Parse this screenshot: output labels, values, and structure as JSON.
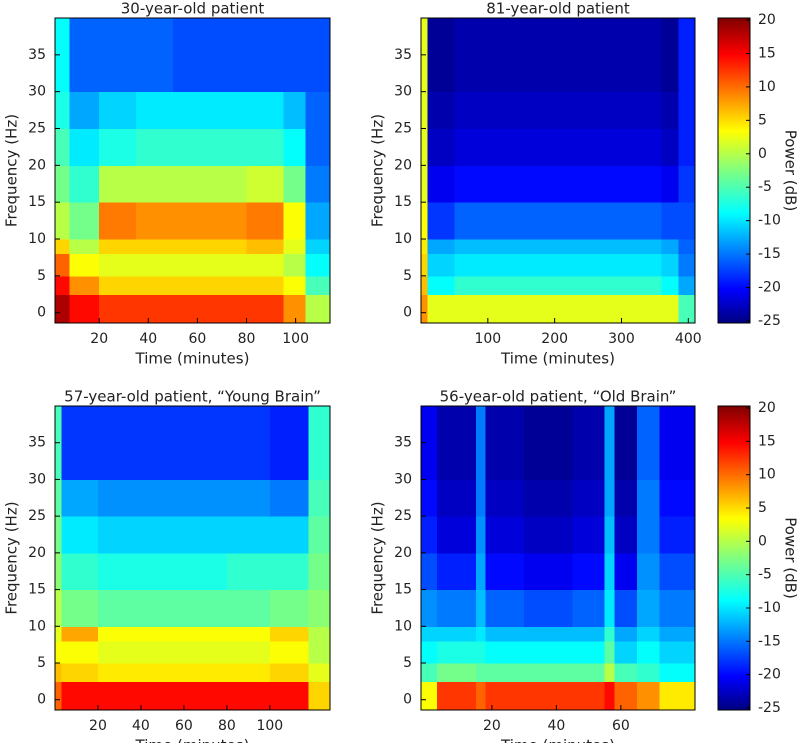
{
  "chart_data": [
    {
      "type": "heatmap",
      "title": "30-year-old patient",
      "xlabel": "Time (minutes)",
      "ylabel": "Frequency (Hz)",
      "colormap": "jet",
      "clim": [
        -25,
        20
      ],
      "xlim": [
        2,
        114
      ],
      "xticks": [
        20,
        40,
        60,
        80,
        100
      ],
      "ylim": [
        -1.4,
        40
      ],
      "yticks": [
        0,
        5,
        10,
        15,
        20,
        25,
        30,
        35
      ],
      "xbins": [
        2,
        8,
        20,
        35,
        50,
        65,
        80,
        95,
        104,
        114
      ],
      "ybins": [
        -1.4,
        2.5,
        5,
        8,
        10,
        15,
        20,
        25,
        30,
        40
      ],
      "z": [
        [
          18,
          14,
          12,
          12,
          12,
          12,
          12,
          8,
          0
        ],
        [
          14,
          8,
          5,
          5,
          5,
          5,
          5,
          3,
          -5
        ],
        [
          10,
          3,
          2,
          2,
          2,
          2,
          2,
          0,
          -8
        ],
        [
          5,
          0,
          5,
          5,
          5,
          5,
          6,
          2,
          -10
        ],
        [
          0,
          -3,
          9,
          8,
          8,
          8,
          9,
          3,
          -12
        ],
        [
          -3,
          -6,
          0,
          0,
          0,
          0,
          1,
          -3,
          -14
        ],
        [
          -5,
          -9,
          -7,
          -6,
          -6,
          -6,
          -6,
          -8,
          -15
        ],
        [
          -7,
          -12,
          -10,
          -9,
          -9,
          -9,
          -9,
          -11,
          -15
        ],
        [
          -8,
          -15,
          -15,
          -15,
          -16,
          -16,
          -16,
          -16,
          -16
        ]
      ]
    },
    {
      "type": "heatmap",
      "title": "81-year-old patient",
      "xlabel": "Time (minutes)",
      "ylabel": "Frequency (Hz)",
      "colormap": "jet",
      "clim": [
        -25,
        20
      ],
      "xlim": [
        0,
        410
      ],
      "xticks": [
        100,
        200,
        300,
        400
      ],
      "ylim": [
        -1.4,
        40
      ],
      "yticks": [
        0,
        5,
        10,
        15,
        20,
        25,
        30,
        35
      ],
      "xbins": [
        0,
        10,
        50,
        100,
        200,
        300,
        360,
        385,
        410
      ],
      "ybins": [
        -1.4,
        2.5,
        5,
        8,
        10,
        15,
        20,
        25,
        30,
        40
      ],
      "z": [
        [
          8,
          2,
          2,
          2,
          2,
          2,
          2,
          -5
        ],
        [
          6,
          -8,
          -6,
          -6,
          -6,
          -6,
          -8,
          -12
        ],
        [
          5,
          -10,
          -9,
          -9,
          -9,
          -9,
          -10,
          -14
        ],
        [
          4,
          -12,
          -11,
          -11,
          -11,
          -11,
          -12,
          -15
        ],
        [
          3,
          -17,
          -15,
          -15,
          -15,
          -15,
          -16,
          -16
        ],
        [
          2,
          -20,
          -19,
          -19,
          -19,
          -19,
          -20,
          -17
        ],
        [
          2,
          -22,
          -21,
          -21,
          -21,
          -21,
          -22,
          -18
        ],
        [
          2,
          -23,
          -22,
          -22,
          -22,
          -22,
          -23,
          -18
        ],
        [
          2,
          -24,
          -23,
          -23,
          -23,
          -23,
          -24,
          -18
        ]
      ],
      "colorbar": {
        "label": "Power (dB)",
        "ticks": [
          20,
          15,
          10,
          5,
          0,
          -5,
          -10,
          -15,
          -20,
          -25
        ]
      }
    },
    {
      "type": "heatmap",
      "title": "57-year-old patient, “Young Brain”",
      "xlabel": "Time (minutes)",
      "ylabel": "Frequency (Hz)",
      "colormap": "jet",
      "clim": [
        -25,
        20
      ],
      "xlim": [
        0,
        128
      ],
      "xticks": [
        20,
        40,
        60,
        80,
        100
      ],
      "ylim": [
        -1.4,
        40
      ],
      "yticks": [
        0,
        5,
        10,
        15,
        20,
        25,
        30,
        35
      ],
      "xbins": [
        0,
        3,
        20,
        40,
        60,
        80,
        100,
        118,
        128
      ],
      "ybins": [
        -1.4,
        2.5,
        5,
        8,
        10,
        15,
        20,
        25,
        30,
        40
      ],
      "z": [
        [
          10,
          14,
          14,
          14,
          14,
          14,
          14,
          5
        ],
        [
          6,
          5,
          4,
          4,
          4,
          4,
          5,
          2
        ],
        [
          3,
          3,
          2,
          2,
          2,
          2,
          3,
          0
        ],
        [
          2,
          7,
          3,
          3,
          3,
          3,
          5,
          0
        ],
        [
          0,
          -3,
          -4,
          -4,
          -4,
          -4,
          -3,
          -2
        ],
        [
          -2,
          -6,
          -7,
          -7,
          -7,
          -6,
          -6,
          -3
        ],
        [
          -3,
          -9,
          -10,
          -10,
          -10,
          -10,
          -10,
          -4
        ],
        [
          -4,
          -12,
          -13,
          -13,
          -13,
          -13,
          -14,
          -5
        ],
        [
          -5,
          -17,
          -17,
          -17,
          -17,
          -17,
          -18,
          -6
        ]
      ]
    },
    {
      "type": "heatmap",
      "title": "56-year-old patient, “Old Brain”",
      "xlabel": "Time (minutes)",
      "ylabel": "Frequency (Hz)",
      "colormap": "jet",
      "clim": [
        -25,
        20
      ],
      "xlim": [
        -2,
        83
      ],
      "xticks": [
        20,
        40,
        60
      ],
      "ylim": [
        -1.4,
        40
      ],
      "yticks": [
        0,
        5,
        10,
        15,
        20,
        25,
        30,
        35
      ],
      "xbins": [
        -2,
        3,
        15,
        18,
        30,
        45,
        55,
        58,
        65,
        72,
        83
      ],
      "ybins": [
        -1.4,
        2.5,
        5,
        8,
        10,
        15,
        20,
        25,
        30,
        40
      ],
      "z": [
        [
          3,
          12,
          10,
          12,
          12,
          12,
          14,
          10,
          8,
          4
        ],
        [
          -5,
          -3,
          -4,
          -4,
          -4,
          -4,
          0,
          -5,
          -6,
          -8
        ],
        [
          -8,
          -7,
          -7,
          -8,
          -8,
          -8,
          -4,
          -10,
          -8,
          -10
        ],
        [
          -10,
          -10,
          -9,
          -11,
          -11,
          -11,
          -6,
          -12,
          -10,
          -12
        ],
        [
          -13,
          -14,
          -11,
          -15,
          -16,
          -15,
          -9,
          -16,
          -12,
          -14
        ],
        [
          -16,
          -18,
          -12,
          -19,
          -20,
          -19,
          -10,
          -20,
          -13,
          -16
        ],
        [
          -18,
          -21,
          -13,
          -21,
          -22,
          -21,
          -11,
          -22,
          -14,
          -18
        ],
        [
          -19,
          -22,
          -14,
          -22,
          -23,
          -22,
          -12,
          -23,
          -14,
          -19
        ],
        [
          -20,
          -23,
          -14,
          -23,
          -24,
          -23,
          -12,
          -24,
          -15,
          -20
        ]
      ],
      "colorbar": {
        "label": "Power (dB)",
        "ticks": [
          20,
          15,
          10,
          5,
          0,
          -5,
          -10,
          -15,
          -20,
          -25
        ]
      }
    }
  ]
}
